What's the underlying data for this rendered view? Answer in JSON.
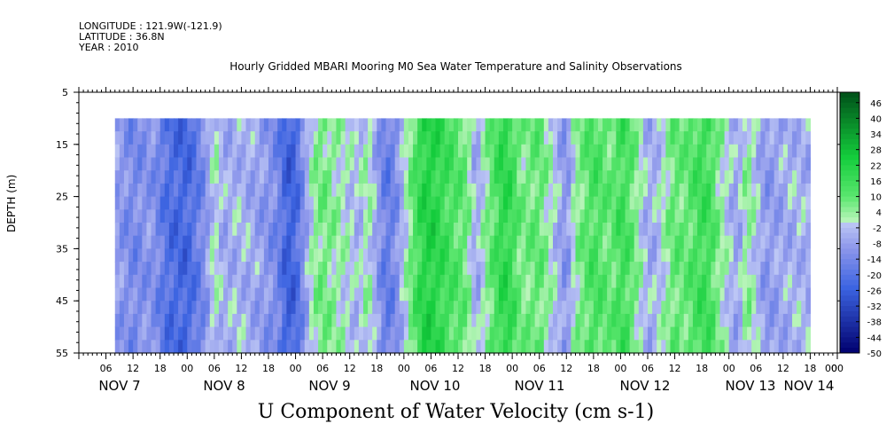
{
  "header": {
    "longitude": "LONGITUDE : 121.9W(-121.9)",
    "latitude": "LATITUDE : 36.8N",
    "year": "YEAR : 2010",
    "plot_title": "Hourly Gridded MBARI Mooring M0 Sea Water Temperature and Salinity Observations",
    "main_title": "U Component of Water Velocity (cm s-1)"
  },
  "chart_data": {
    "type": "heatmap",
    "title": "U Component of Water Velocity (cm s-1)",
    "subtitle": "Hourly Gridded MBARI Mooring M0 Sea Water Temperature and Salinity Observations",
    "xlabel": "",
    "ylabel": "DEPTH (m)",
    "y_reversed": true,
    "ylim": [
      5,
      55
    ],
    "yticks": [
      5,
      15,
      25,
      35,
      45,
      55
    ],
    "xlim_hours": [
      0,
      168
    ],
    "x_hour_tick_labels": [
      "06",
      "12",
      "18",
      "00",
      "06",
      "12",
      "18",
      "00",
      "06",
      "12",
      "18",
      "00",
      "06",
      "12",
      "18",
      "00",
      "06",
      "12",
      "18",
      "00",
      "06",
      "12",
      "18",
      "00",
      "06",
      "12",
      "18",
      "00",
      "00"
    ],
    "x_day_labels": [
      "NOV  7",
      "NOV  8",
      "NOV  9",
      "NOV 10",
      "NOV 11",
      "NOV 12",
      "NOV 13",
      "NOV 14"
    ],
    "data_depth_range": [
      10,
      55
    ],
    "data_time_range_hours": [
      8,
      162
    ],
    "colorbar_labels": [
      "46",
      "40",
      "34",
      "28",
      "22",
      "16",
      "10",
      "4",
      "-2",
      "-8",
      "-14",
      "-20",
      "-26",
      "-32",
      "-38",
      "-44",
      "-50"
    ],
    "colorbar_range": [
      -50,
      50
    ],
    "columns": [
      {
        "t": 8,
        "u": -8
      },
      {
        "t": 12,
        "u": -14
      },
      {
        "t": 16,
        "u": -10
      },
      {
        "t": 20,
        "u": -22
      },
      {
        "t": 24,
        "u": -24
      },
      {
        "t": 28,
        "u": -12
      },
      {
        "t": 30,
        "u": 2
      },
      {
        "t": 32,
        "u": -6
      },
      {
        "t": 36,
        "u": -4
      },
      {
        "t": 40,
        "u": -8
      },
      {
        "t": 44,
        "u": -14
      },
      {
        "t": 46,
        "u": -26
      },
      {
        "t": 48,
        "u": -24
      },
      {
        "t": 50,
        "u": -10
      },
      {
        "t": 52,
        "u": 4
      },
      {
        "t": 54,
        "u": 8
      },
      {
        "t": 58,
        "u": 2
      },
      {
        "t": 62,
        "u": -4
      },
      {
        "t": 64,
        "u": 4
      },
      {
        "t": 66,
        "u": -8
      },
      {
        "t": 68,
        "u": -18
      },
      {
        "t": 70,
        "u": -14
      },
      {
        "t": 72,
        "u": -2
      },
      {
        "t": 74,
        "u": 10
      },
      {
        "t": 76,
        "u": 20
      },
      {
        "t": 78,
        "u": 22
      },
      {
        "t": 82,
        "u": 14
      },
      {
        "t": 86,
        "u": 8
      },
      {
        "t": 88,
        "u": -8
      },
      {
        "t": 90,
        "u": 4
      },
      {
        "t": 94,
        "u": 20
      },
      {
        "t": 96,
        "u": 16
      },
      {
        "t": 98,
        "u": 6
      },
      {
        "t": 102,
        "u": 10
      },
      {
        "t": 106,
        "u": -4
      },
      {
        "t": 108,
        "u": -12
      },
      {
        "t": 110,
        "u": 4
      },
      {
        "t": 114,
        "u": 14
      },
      {
        "t": 118,
        "u": 8
      },
      {
        "t": 120,
        "u": 16
      },
      {
        "t": 122,
        "u": 12
      },
      {
        "t": 126,
        "u": -6
      },
      {
        "t": 128,
        "u": -4
      },
      {
        "t": 132,
        "u": 10
      },
      {
        "t": 134,
        "u": 8
      },
      {
        "t": 138,
        "u": 16
      },
      {
        "t": 140,
        "u": 14
      },
      {
        "t": 142,
        "u": 4
      },
      {
        "t": 146,
        "u": -8
      },
      {
        "t": 148,
        "u": 6
      },
      {
        "t": 152,
        "u": -10
      },
      {
        "t": 156,
        "u": -6
      },
      {
        "t": 160,
        "u": -4
      },
      {
        "t": 162,
        "u": -6
      }
    ]
  }
}
